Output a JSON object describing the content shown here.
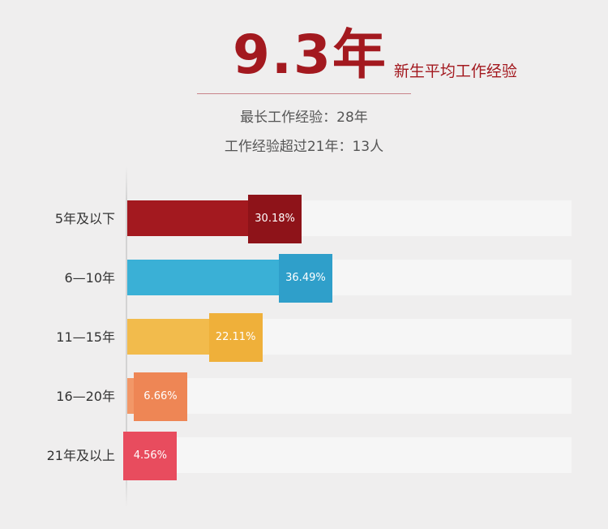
{
  "headline": {
    "value": "9.3年",
    "caption": "新生平均工作经验"
  },
  "subtitles": [
    "最长工作经验：28年",
    "工作经验超过21年：13人"
  ],
  "chart_data": {
    "type": "bar",
    "orientation": "horizontal",
    "unit": "%",
    "categories": [
      "5年及以下",
      "6—10年",
      "11—15年",
      "16—20年",
      "21年及以上"
    ],
    "values": [
      30.18,
      36.49,
      22.11,
      6.66,
      4.56
    ],
    "labels": [
      "30.18%",
      "36.49%",
      "22.11%",
      "6.66%",
      "4.56%"
    ],
    "colors": [
      "#a3191f",
      "#3ab0d6",
      "#f2bb4c",
      "#f29767",
      "#ef5d6d"
    ],
    "tag_colors": [
      "#8e1319",
      "#2f9fca",
      "#efb03a",
      "#ee8655",
      "#e84c5e"
    ],
    "track_color": "#f6f6f6",
    "xlim": [
      0,
      100
    ]
  }
}
